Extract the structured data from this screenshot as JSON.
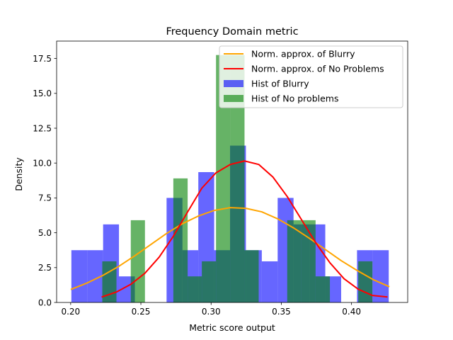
{
  "chart_data": {
    "type": "bar",
    "title": "Frequency Domain metric",
    "xlabel": "Metric score output",
    "ylabel": "Density",
    "xlim": [
      0.19,
      0.44
    ],
    "ylim": [
      0,
      18.75
    ],
    "xticks": [
      0.2,
      0.25,
      0.3,
      0.35,
      0.4
    ],
    "xtick_labels": [
      "0.20",
      "0.25",
      "0.30",
      "0.35",
      "0.40"
    ],
    "yticks": [
      0.0,
      2.5,
      5.0,
      7.5,
      10.0,
      12.5,
      15.0,
      17.5
    ],
    "ytick_labels": [
      "0.0",
      "2.5",
      "5.0",
      "7.5",
      "10.0",
      "12.5",
      "15.0",
      "17.5"
    ],
    "grid": false,
    "legend_position": "top-right",
    "histograms": [
      {
        "name": "Hist of Blurry",
        "color": "#0000ff",
        "alpha": 0.6,
        "bin_edges": [
          0.2005,
          0.2118,
          0.2231,
          0.2344,
          0.2457,
          0.257,
          0.2683,
          0.2796,
          0.2909,
          0.3022,
          0.3135,
          0.3248,
          0.3361,
          0.3474,
          0.3587,
          0.37,
          0.3813,
          0.3926,
          0.4039,
          0.4152,
          0.4265
        ],
        "values": [
          3.75,
          3.75,
          5.6,
          1.87,
          0.0,
          0.0,
          7.5,
          3.75,
          9.35,
          3.75,
          11.25,
          3.75,
          2.95,
          7.5,
          5.6,
          5.6,
          1.87,
          0.0,
          3.75,
          3.75
        ]
      },
      {
        "name": "Hist of No problems",
        "color": "#008000",
        "alpha": 0.6,
        "bin_edges": [
          0.2225,
          0.2326,
          0.2428,
          0.2529,
          0.263,
          0.2731,
          0.2833,
          0.2934,
          0.3035,
          0.3137,
          0.3238,
          0.3339,
          0.344,
          0.3542,
          0.3643,
          0.3744,
          0.3846,
          0.3947,
          0.4048,
          0.4149,
          0.4251
        ],
        "values": [
          2.95,
          0.0,
          5.9,
          0.0,
          0.0,
          8.9,
          1.87,
          2.95,
          17.75,
          17.75,
          3.75,
          0.0,
          0.0,
          5.9,
          5.9,
          1.87,
          0.0,
          0.0,
          2.95,
          0.0
        ]
      }
    ],
    "lines": [
      {
        "name": "Norm. approx. of Blurry",
        "color": "#ffa500",
        "x": [
          0.2005,
          0.2118,
          0.2231,
          0.2344,
          0.2457,
          0.257,
          0.2683,
          0.2796,
          0.2909,
          0.3022,
          0.3135,
          0.3248,
          0.3361,
          0.3474,
          0.3587,
          0.37,
          0.3813,
          0.3926,
          0.4039,
          0.4152,
          0.4265
        ],
        "y": [
          0.95,
          1.4,
          1.95,
          2.6,
          3.35,
          4.15,
          4.95,
          5.65,
          6.2,
          6.6,
          6.8,
          6.75,
          6.5,
          6.0,
          5.35,
          4.6,
          3.8,
          3.0,
          2.3,
          1.65,
          1.15
        ]
      },
      {
        "name": "Norm. approx. of No Problems",
        "color": "#ff0000",
        "x": [
          0.2225,
          0.2326,
          0.2428,
          0.2529,
          0.263,
          0.2731,
          0.2833,
          0.2934,
          0.3035,
          0.3137,
          0.3238,
          0.3339,
          0.344,
          0.3542,
          0.3643,
          0.3744,
          0.3846,
          0.3947,
          0.4048,
          0.4149,
          0.4251
        ],
        "y": [
          0.4,
          0.75,
          1.3,
          2.1,
          3.25,
          4.75,
          6.5,
          8.2,
          9.3,
          9.9,
          10.15,
          9.9,
          9.0,
          7.6,
          5.95,
          4.3,
          2.85,
          1.7,
          0.95,
          0.5,
          0.4
        ]
      }
    ]
  }
}
